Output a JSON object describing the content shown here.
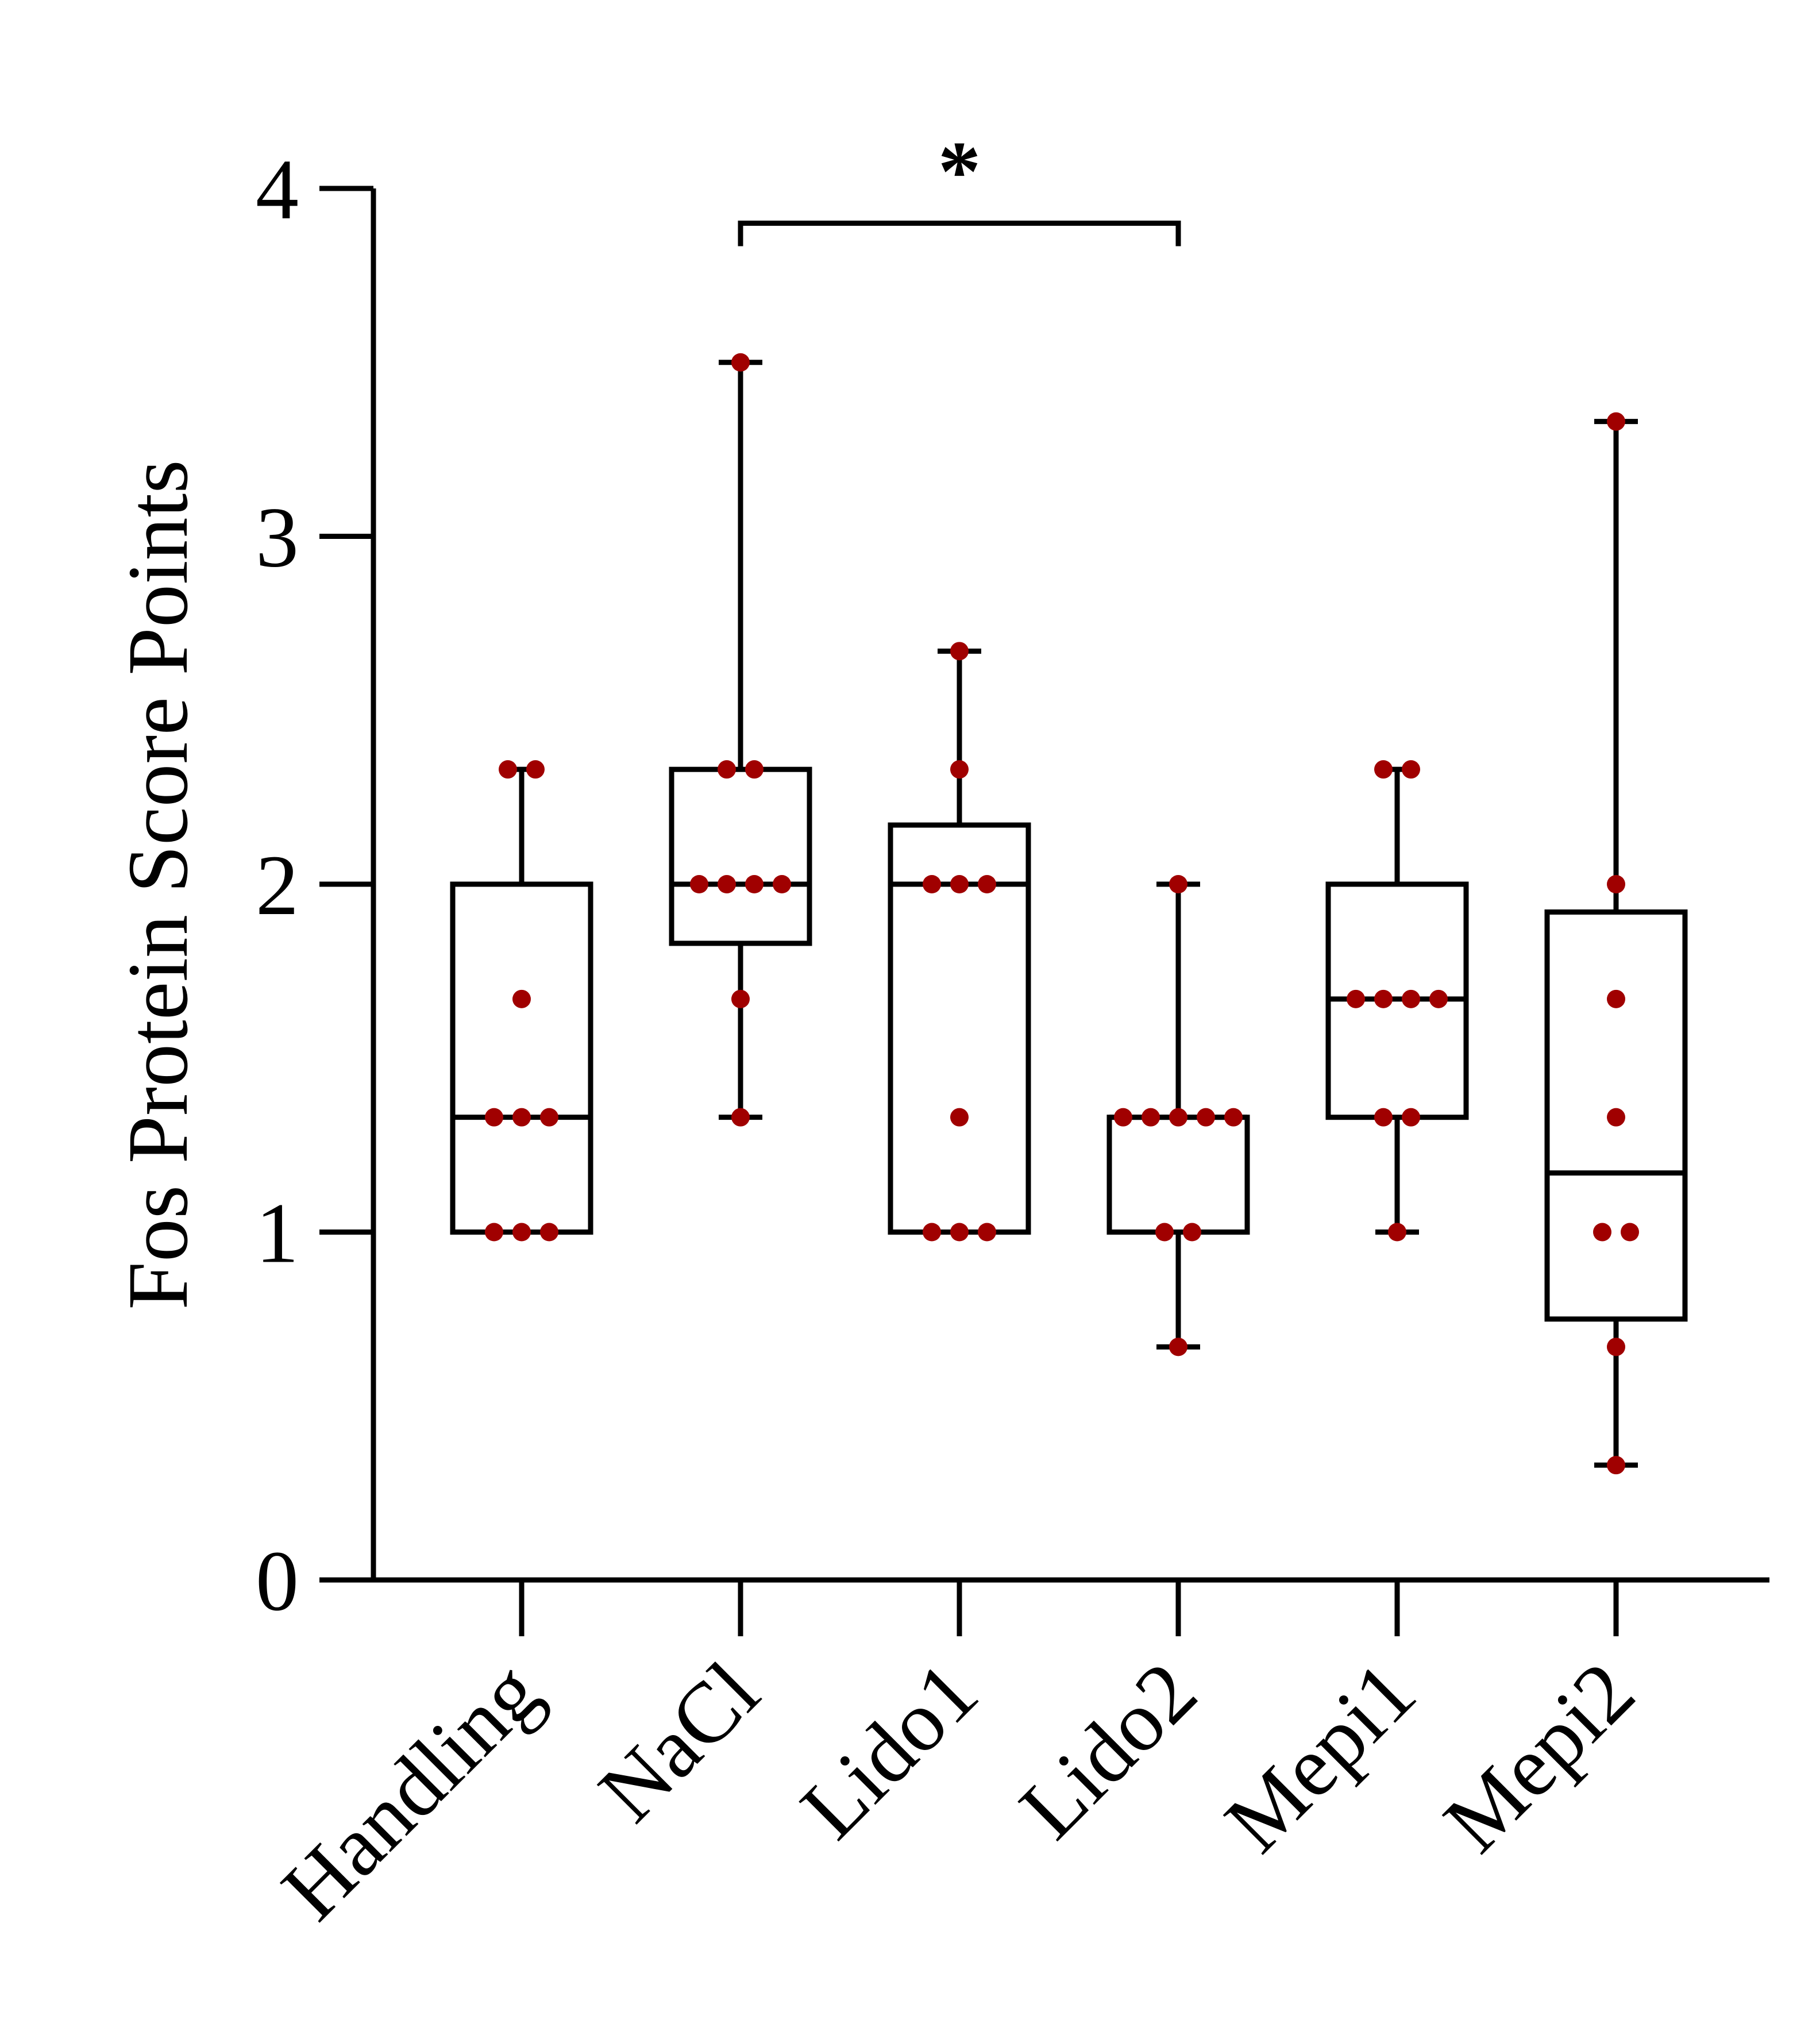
{
  "chart_data": {
    "type": "box",
    "title": "",
    "xlabel": "",
    "ylabel": "Fos Protein Score Points",
    "ylim": [
      0,
      4
    ],
    "yticks": [
      0,
      1,
      2,
      3,
      4
    ],
    "grid": false,
    "categories": [
      "Handling",
      "NaCl",
      "Lido1",
      "Lido2",
      "Mepi1",
      "Mepi2"
    ],
    "boxes": [
      {
        "name": "Handling",
        "min": 1.0,
        "q1": 1.0,
        "median": 1.33,
        "q3": 2.0,
        "max": 2.33,
        "points": [
          2.33,
          2.33,
          1.67,
          1.33,
          1.33,
          1.33,
          1.0,
          1.0,
          1.0
        ]
      },
      {
        "name": "NaCl",
        "min": 1.33,
        "q1": 1.83,
        "median": 2.0,
        "q3": 2.33,
        "max": 3.5,
        "points": [
          3.5,
          2.33,
          2.33,
          2.0,
          2.0,
          2.0,
          2.0,
          1.67,
          1.33
        ]
      },
      {
        "name": "Lido1",
        "min": 1.0,
        "q1": 1.0,
        "median": 2.0,
        "q3": 2.17,
        "max": 2.67,
        "points": [
          2.67,
          2.33,
          2.0,
          2.0,
          2.0,
          1.33,
          1.0,
          1.0,
          1.0
        ]
      },
      {
        "name": "Lido2",
        "min": 0.67,
        "q1": 1.0,
        "median": 1.33,
        "q3": 1.33,
        "max": 2.0,
        "points": [
          2.0,
          1.33,
          1.33,
          1.33,
          1.33,
          1.33,
          1.0,
          1.0,
          0.67
        ]
      },
      {
        "name": "Mepi1",
        "min": 1.0,
        "q1": 1.33,
        "median": 1.67,
        "q3": 2.0,
        "max": 2.33,
        "points": [
          2.33,
          2.33,
          1.67,
          1.67,
          1.67,
          1.67,
          1.33,
          1.33,
          1.0
        ]
      },
      {
        "name": "Mepi2",
        "min": 0.33,
        "q1": 0.75,
        "median": 1.17,
        "q3": 1.92,
        "max": 3.33,
        "points": [
          3.33,
          2.0,
          1.67,
          1.33,
          1.0,
          1.0,
          0.67,
          0.33
        ]
      }
    ],
    "significance": [
      {
        "from": "NaCl",
        "to": "Lido2",
        "label": "*",
        "y": 3.9
      }
    ],
    "point_color": "#a00000",
    "box_color": "#000000"
  }
}
